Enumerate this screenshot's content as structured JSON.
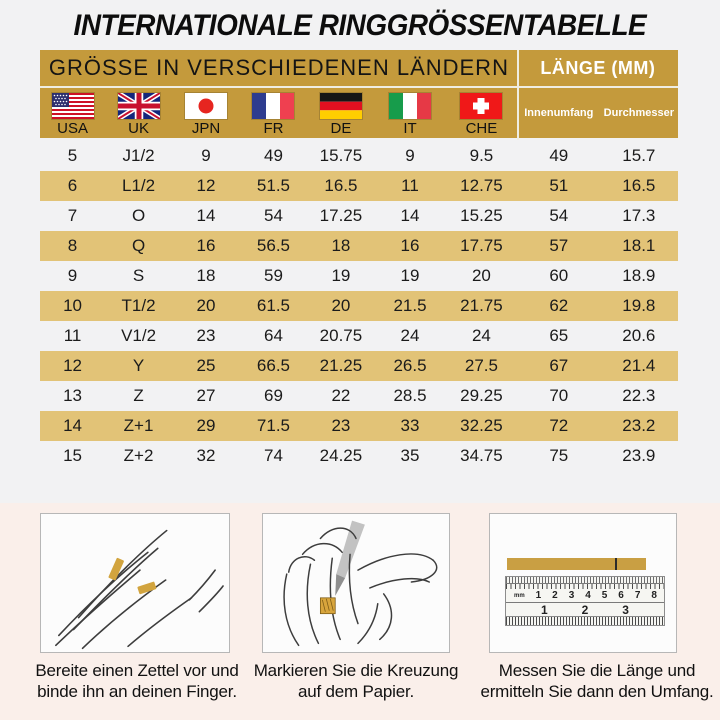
{
  "title": "INTERNATIONALE RINGGRÖSSENTABELLE",
  "table": {
    "header_left": "GRÖSSE IN VERSCHIEDENEN LÄNDERN",
    "header_right": "LÄNGE (MM)",
    "sub_headers": [
      "Innenumfang",
      "Durchmesser"
    ],
    "countries": [
      {
        "code": "USA"
      },
      {
        "code": "UK"
      },
      {
        "code": "JPN"
      },
      {
        "code": "FR"
      },
      {
        "code": "DE"
      },
      {
        "code": "IT"
      },
      {
        "code": "CHE"
      }
    ],
    "rows": [
      [
        "5",
        "J1/2",
        "9",
        "49",
        "15.75",
        "9",
        "9.5",
        "49",
        "15.7"
      ],
      [
        "6",
        "L1/2",
        "12",
        "51.5",
        "16.5",
        "11",
        "12.75",
        "51",
        "16.5"
      ],
      [
        "7",
        "O",
        "14",
        "54",
        "17.25",
        "14",
        "15.25",
        "54",
        "17.3"
      ],
      [
        "8",
        "Q",
        "16",
        "56.5",
        "18",
        "16",
        "17.75",
        "57",
        "18.1"
      ],
      [
        "9",
        "S",
        "18",
        "59",
        "19",
        "19",
        "20",
        "60",
        "18.9"
      ],
      [
        "10",
        "T1/2",
        "20",
        "61.5",
        "20",
        "21.5",
        "21.75",
        "62",
        "19.8"
      ],
      [
        "11",
        "V1/2",
        "23",
        "64",
        "20.75",
        "24",
        "24",
        "65",
        "20.6"
      ],
      [
        "12",
        "Y",
        "25",
        "66.5",
        "21.25",
        "26.5",
        "27.5",
        "67",
        "21.4"
      ],
      [
        "13",
        "Z",
        "27",
        "69",
        "22",
        "28.5",
        "29.25",
        "70",
        "22.3"
      ],
      [
        "14",
        "Z+1",
        "29",
        "71.5",
        "23",
        "33",
        "32.25",
        "72",
        "23.2"
      ],
      [
        "15",
        "Z+2",
        "32",
        "74",
        "24.25",
        "35",
        "34.75",
        "75",
        "23.9"
      ]
    ]
  },
  "instructions": [
    {
      "icon": "hand-with-paper-strip-illustration",
      "caption": "Bereite einen Zettel vor und binde ihn an deinen Finger."
    },
    {
      "icon": "hand-marking-pen-illustration",
      "caption": "Markieren Sie die Kreuzung auf dem Papier."
    },
    {
      "icon": "ruler-measure-illustration",
      "caption": "Messen Sie die Länge und ermitteln Sie dann den Umfang.",
      "ruler": {
        "unit_label": "mm",
        "top_numbers": [
          "1",
          "2",
          "3",
          "4",
          "5",
          "6",
          "7",
          "8"
        ],
        "bottom_numbers": [
          "1",
          "2",
          "3"
        ]
      }
    }
  ],
  "colors": {
    "header_gold": "#C49A3C",
    "row_stripe_gold": "#E2C377",
    "bottom_background": "#FAEFEA",
    "page_background": "#F2F2F3",
    "paper_strip_gold": "#D2A43E"
  }
}
